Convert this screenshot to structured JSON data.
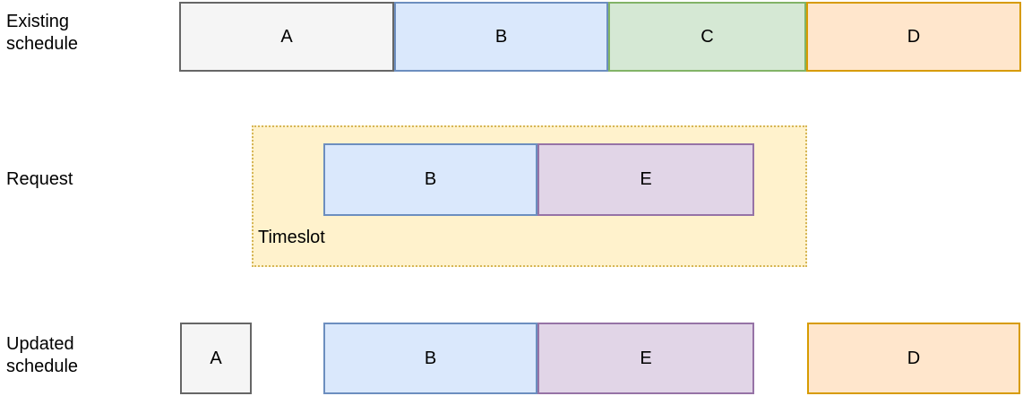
{
  "labels": {
    "existing_schedule": "Existing schedule",
    "request": "Request",
    "updated_schedule": "Updated schedule",
    "timeslot": "Timeslot"
  },
  "blocks": {
    "existing": [
      {
        "label": "A",
        "color": "gray"
      },
      {
        "label": "B",
        "color": "blue"
      },
      {
        "label": "C",
        "color": "green"
      },
      {
        "label": "D",
        "color": "orange"
      }
    ],
    "request": [
      {
        "label": "B",
        "color": "blue"
      },
      {
        "label": "E",
        "color": "purple"
      }
    ],
    "updated": [
      {
        "label": "A",
        "color": "gray"
      },
      {
        "label": "B",
        "color": "blue"
      },
      {
        "label": "E",
        "color": "purple"
      },
      {
        "label": "D",
        "color": "orange"
      }
    ]
  },
  "palette": {
    "gray": {
      "fill": "#f5f5f5",
      "stroke": "#666666"
    },
    "blue": {
      "fill": "#dae8fc",
      "stroke": "#6c8ebf"
    },
    "green": {
      "fill": "#d5e8d4",
      "stroke": "#82b366"
    },
    "orange": {
      "fill": "#ffe6cc",
      "stroke": "#d79b00"
    },
    "purple": {
      "fill": "#e1d5e7",
      "stroke": "#9673a6"
    },
    "timeslot_container": {
      "fill": "#fff2cc",
      "stroke": "#d6b656"
    }
  }
}
